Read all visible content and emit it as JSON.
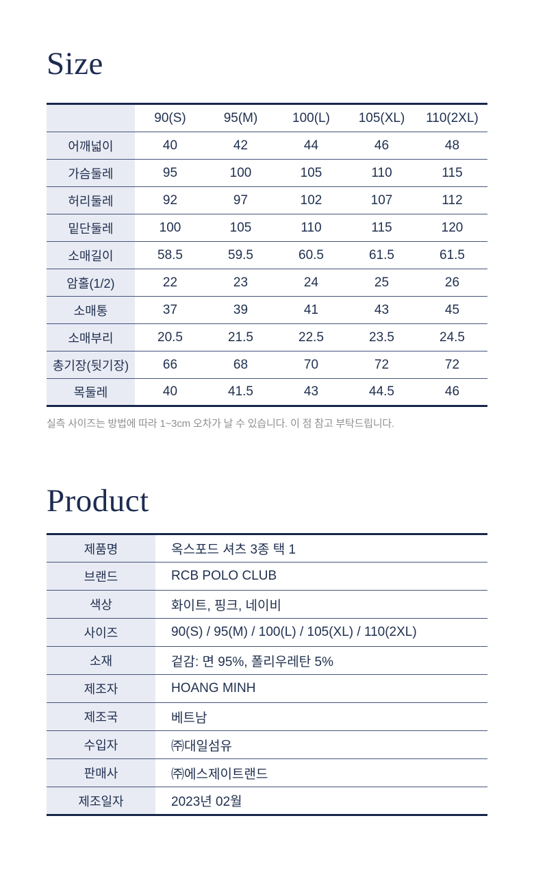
{
  "theme": {
    "text_navy": "#20304f",
    "title_navy": "#1c2b50",
    "border_heavy": "#17264a",
    "border_light": "#44537b",
    "label_column_shade": "#e9ebf4",
    "note_gray": "#8f8f8f",
    "background": "#ffffff"
  },
  "size_section": {
    "title": "Size",
    "note": "실측 사이즈는 방법에 따라 1~3cm 오차가 날 수 있습니다. 이 점 참고 부탁드립니다.",
    "table": {
      "columns": [
        "90(S)",
        "95(M)",
        "100(L)",
        "105(XL)",
        "110(2XL)"
      ],
      "rows": [
        {
          "label": "어깨넓이",
          "values": [
            "40",
            "42",
            "44",
            "46",
            "48"
          ]
        },
        {
          "label": "가슴둘레",
          "values": [
            "95",
            "100",
            "105",
            "110",
            "115"
          ]
        },
        {
          "label": "허리둘레",
          "values": [
            "92",
            "97",
            "102",
            "107",
            "112"
          ]
        },
        {
          "label": "밑단둘레",
          "values": [
            "100",
            "105",
            "110",
            "115",
            "120"
          ]
        },
        {
          "label": "소매길이",
          "values": [
            "58.5",
            "59.5",
            "60.5",
            "61.5",
            "61.5"
          ]
        },
        {
          "label": "암홀(1/2)",
          "values": [
            "22",
            "23",
            "24",
            "25",
            "26"
          ]
        },
        {
          "label": "소매통",
          "values": [
            "37",
            "39",
            "41",
            "43",
            "45"
          ]
        },
        {
          "label": "소매부리",
          "values": [
            "20.5",
            "21.5",
            "22.5",
            "23.5",
            "24.5"
          ]
        },
        {
          "label": "총기장(뒷기장)",
          "values": [
            "66",
            "68",
            "70",
            "72",
            "72"
          ]
        },
        {
          "label": "목둘레",
          "values": [
            "40",
            "41.5",
            "43",
            "44.5",
            "46"
          ]
        }
      ]
    }
  },
  "product_section": {
    "title": "Product",
    "rows": [
      {
        "label": "제품명",
        "value": "옥스포드 셔츠 3종 택 1"
      },
      {
        "label": "브랜드",
        "value": "RCB POLO CLUB"
      },
      {
        "label": "색상",
        "value": "화이트, 핑크, 네이비"
      },
      {
        "label": "사이즈",
        "value": "90(S) / 95(M) / 100(L) / 105(XL) / 110(2XL)"
      },
      {
        "label": "소재",
        "value": "겉감: 면 95%, 폴리우레탄 5%"
      },
      {
        "label": "제조자",
        "value": "HOANG MINH"
      },
      {
        "label": "제조국",
        "value": "베트남"
      },
      {
        "label": "수입자",
        "value": "㈜대일섬유"
      },
      {
        "label": "판매사",
        "value": "㈜에스제이트랜드"
      },
      {
        "label": "제조일자",
        "value": "2023년 02월"
      }
    ]
  }
}
